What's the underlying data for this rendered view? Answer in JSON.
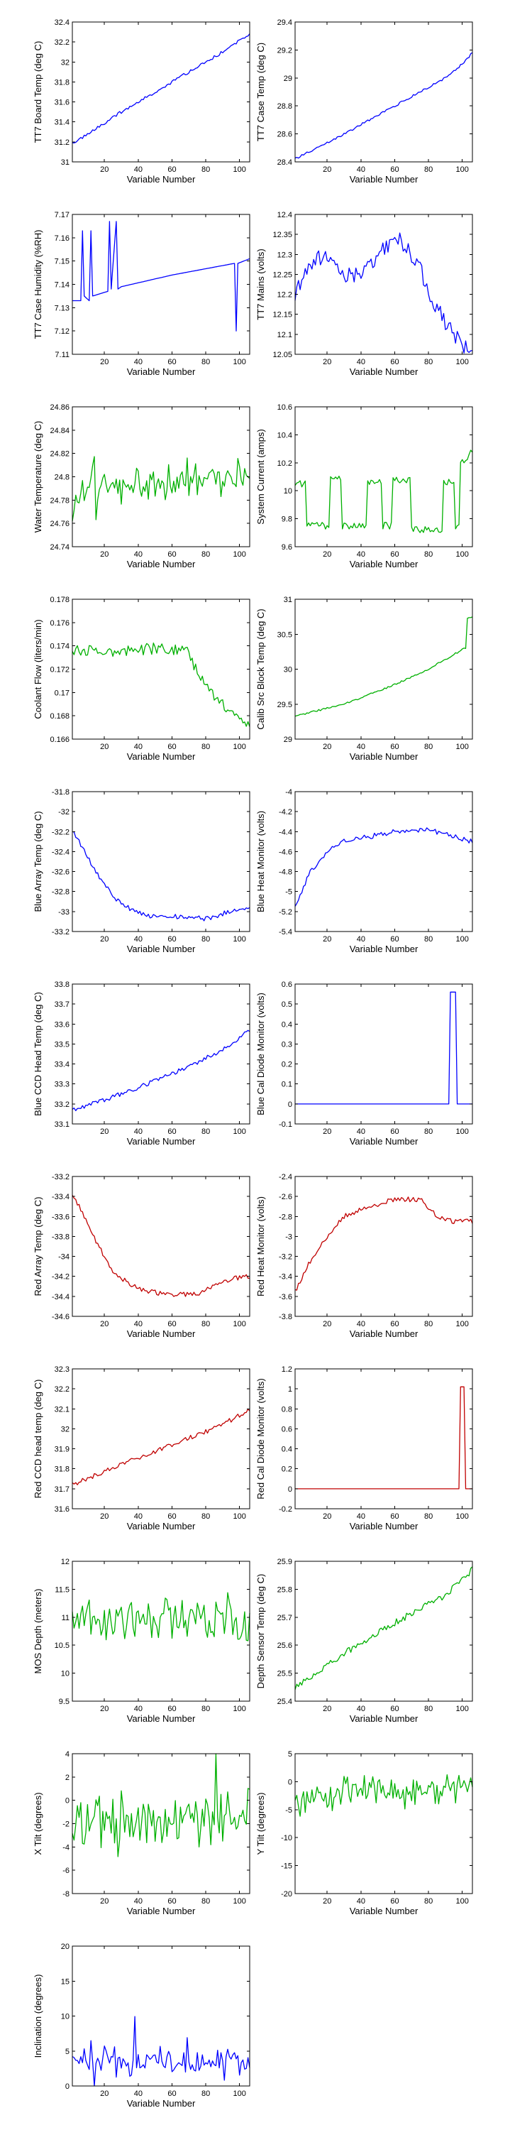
{
  "chart_data": [
    {
      "type": "line",
      "xlabel": "Variable Number",
      "ylabel": "TT7 Board Temp (deg C)",
      "xlim": [
        1,
        106
      ],
      "ylim": [
        31,
        32.4
      ],
      "xticks": [
        20,
        40,
        60,
        80,
        100
      ],
      "yticks": [
        "31",
        "31.2",
        "31.4",
        "31.6",
        "31.8",
        "32",
        "32.2",
        "32.4"
      ],
      "color": "#0000ff",
      "shape": "linear",
      "points": [
        [
          1,
          31.18
        ],
        [
          30,
          31.5
        ],
        [
          60,
          31.8
        ],
        [
          90,
          32.1
        ],
        [
          106,
          32.28
        ]
      ],
      "noise": 0.015
    },
    {
      "type": "line",
      "xlabel": "Variable Number",
      "ylabel": "TT7 Case Temp (deg C)",
      "xlim": [
        1,
        106
      ],
      "ylim": [
        28.4,
        29.4
      ],
      "xticks": [
        20,
        40,
        60,
        80,
        100
      ],
      "yticks": [
        "28.4",
        "28.6",
        "28.8",
        "29",
        "29.2",
        "29.4"
      ],
      "color": "#0000ff",
      "shape": "linear",
      "points": [
        [
          1,
          28.42
        ],
        [
          30,
          28.6
        ],
        [
          60,
          28.8
        ],
        [
          90,
          29.0
        ],
        [
          100,
          29.1
        ],
        [
          106,
          29.18
        ]
      ],
      "noise": 0.008
    },
    {
      "type": "line",
      "xlabel": "Variable Number",
      "ylabel": "TT7 Case Humidity (%RH)",
      "xlim": [
        1,
        106
      ],
      "ylim": [
        7.11,
        7.17
      ],
      "xticks": [
        20,
        40,
        60,
        80,
        100
      ],
      "yticks": [
        "7.11",
        "7.12",
        "7.13",
        "7.14",
        "7.15",
        "7.16",
        "7.17"
      ],
      "color": "#0000ff",
      "shape": "humidity",
      "points": [
        [
          1,
          7.133
        ],
        [
          6,
          7.133
        ],
        [
          7,
          7.163
        ],
        [
          8,
          7.135
        ],
        [
          11,
          7.133
        ],
        [
          12,
          7.163
        ],
        [
          13,
          7.135
        ],
        [
          22,
          7.137
        ],
        [
          23,
          7.167
        ],
        [
          24,
          7.138
        ],
        [
          27,
          7.167
        ],
        [
          28,
          7.138
        ],
        [
          30,
          7.139
        ],
        [
          60,
          7.144
        ],
        [
          97,
          7.149
        ],
        [
          98,
          7.12
        ],
        [
          99,
          7.149
        ],
        [
          106,
          7.151
        ]
      ],
      "noise": 0.0
    },
    {
      "type": "line",
      "xlabel": "Variable Number",
      "ylabel": "TT7 Mains (volts)",
      "xlim": [
        1,
        106
      ],
      "ylim": [
        12.05,
        12.4
      ],
      "xticks": [
        20,
        40,
        60,
        80,
        100
      ],
      "yticks": [
        "12.05",
        "12.1",
        "12.15",
        "12.2",
        "12.25",
        "12.3",
        "12.35",
        "12.4"
      ],
      "color": "#0000ff",
      "shape": "mains",
      "points": [
        [
          1,
          12.2
        ],
        [
          10,
          12.28
        ],
        [
          20,
          12.3
        ],
        [
          30,
          12.25
        ],
        [
          40,
          12.25
        ],
        [
          50,
          12.3
        ],
        [
          62,
          12.34
        ],
        [
          70,
          12.3
        ],
        [
          75,
          12.27
        ],
        [
          80,
          12.2
        ],
        [
          85,
          12.17
        ],
        [
          90,
          12.13
        ],
        [
          95,
          12.1
        ],
        [
          100,
          12.07
        ],
        [
          106,
          12.06
        ]
      ],
      "noise": 0.02
    },
    {
      "type": "line",
      "xlabel": "Variable Number",
      "ylabel": "Water Temperature (deg C)",
      "xlim": [
        1,
        106
      ],
      "ylim": [
        24.74,
        24.86
      ],
      "xticks": [
        20,
        40,
        60,
        80,
        100
      ],
      "yticks": [
        "24.74",
        "24.76",
        "24.78",
        "24.8",
        "24.82",
        "24.84",
        "24.86"
      ],
      "color": "#00b000",
      "shape": "noise",
      "points": [
        [
          1,
          24.77
        ],
        [
          10,
          24.79
        ],
        [
          50,
          24.795
        ],
        [
          106,
          24.8
        ]
      ],
      "noise": 0.013
    },
    {
      "type": "line",
      "xlabel": "Variable Number",
      "ylabel": "System Current (amps)",
      "xlim": [
        1,
        106
      ],
      "ylim": [
        9.6,
        10.6
      ],
      "xticks": [
        20,
        40,
        60,
        80,
        100
      ],
      "yticks": [
        "9.6",
        "9.8",
        "10",
        "10.2",
        "10.4",
        "10.6"
      ],
      "color": "#00b000",
      "shape": "current",
      "points": [
        [
          1,
          10.05
        ],
        [
          7,
          10.05
        ],
        [
          8,
          9.75
        ],
        [
          21,
          9.75
        ],
        [
          22,
          10.08
        ],
        [
          28,
          10.08
        ],
        [
          29,
          9.75
        ],
        [
          43,
          9.75
        ],
        [
          44,
          10.06
        ],
        [
          52,
          10.06
        ],
        [
          53,
          9.75
        ],
        [
          58,
          9.75
        ],
        [
          59,
          10.08
        ],
        [
          69,
          10.08
        ],
        [
          70,
          9.72
        ],
        [
          88,
          9.72
        ],
        [
          89,
          10.06
        ],
        [
          95,
          10.06
        ],
        [
          96,
          9.75
        ],
        [
          98,
          9.75
        ],
        [
          99,
          10.2
        ],
        [
          106,
          10.28
        ]
      ],
      "noise": 0.025
    },
    {
      "type": "line",
      "xlabel": "Variable Number",
      "ylabel": "Coolant Flow (liters/min)",
      "xlim": [
        1,
        106
      ],
      "ylim": [
        0.166,
        0.178
      ],
      "xticks": [
        20,
        40,
        60,
        80,
        100
      ],
      "yticks": [
        "0.166",
        "0.168",
        "0.17",
        "0.172",
        "0.174",
        "0.176",
        "0.178"
      ],
      "color": "#00b000",
      "shape": "piecewise",
      "points": [
        [
          1,
          0.1737
        ],
        [
          30,
          0.1735
        ],
        [
          50,
          0.1738
        ],
        [
          68,
          0.1737
        ],
        [
          75,
          0.1718
        ],
        [
          85,
          0.1695
        ],
        [
          95,
          0.1685
        ],
        [
          106,
          0.1672
        ]
      ],
      "noise": 0.0005
    },
    {
      "type": "line",
      "xlabel": "Variable Number",
      "ylabel": "Calib Src Block Temp (deg C)",
      "xlim": [
        1,
        106
      ],
      "ylim": [
        29,
        31
      ],
      "xticks": [
        20,
        40,
        60,
        80,
        100
      ],
      "yticks": [
        "29",
        "29.5",
        "30",
        "30.5",
        "31"
      ],
      "color": "#00b000",
      "shape": "piecewise",
      "points": [
        [
          1,
          29.33
        ],
        [
          30,
          29.5
        ],
        [
          60,
          29.78
        ],
        [
          80,
          30.0
        ],
        [
          100,
          30.28
        ],
        [
          102,
          30.3
        ],
        [
          103,
          30.72
        ],
        [
          106,
          30.75
        ]
      ],
      "noise": 0.012
    },
    {
      "type": "line",
      "xlabel": "Variable Number",
      "ylabel": "Blue Array Temp (deg C)",
      "xlim": [
        1,
        106
      ],
      "ylim": [
        -33.2,
        -31.8
      ],
      "xticks": [
        20,
        40,
        60,
        80,
        100
      ],
      "yticks": [
        "-33.2",
        "-33",
        "-32.8",
        "-32.6",
        "-32.4",
        "-32.2",
        "-32",
        "-31.8"
      ],
      "color": "#0000ff",
      "shape": "decay",
      "points": [
        [
          1,
          -32.2
        ],
        [
          5,
          -32.3
        ],
        [
          15,
          -32.6
        ],
        [
          25,
          -32.85
        ],
        [
          35,
          -32.97
        ],
        [
          45,
          -33.05
        ],
        [
          60,
          -33.05
        ],
        [
          80,
          -33.07
        ],
        [
          95,
          -33.0
        ],
        [
          106,
          -32.95
        ]
      ],
      "noise": 0.025
    },
    {
      "type": "line",
      "xlabel": "Variable Number",
      "ylabel": "Blue Heat Monitor (volts)",
      "xlim": [
        1,
        106
      ],
      "ylim": [
        -5.4,
        -4
      ],
      "xticks": [
        20,
        40,
        60,
        80,
        100
      ],
      "yticks": [
        "-5.4",
        "-5.2",
        "-5",
        "-4.8",
        "-4.6",
        "-4.4",
        "-4.2",
        "-4"
      ],
      "color": "#0000ff",
      "shape": "rise",
      "points": [
        [
          1,
          -5.15
        ],
        [
          10,
          -4.8
        ],
        [
          20,
          -4.6
        ],
        [
          30,
          -4.5
        ],
        [
          45,
          -4.45
        ],
        [
          60,
          -4.4
        ],
        [
          80,
          -4.38
        ],
        [
          95,
          -4.45
        ],
        [
          106,
          -4.5
        ]
      ],
      "noise": 0.025
    },
    {
      "type": "line",
      "xlabel": "Variable Number",
      "ylabel": "Blue CCD Head Temp (deg C)",
      "xlim": [
        1,
        106
      ],
      "ylim": [
        33.1,
        33.8
      ],
      "xticks": [
        20,
        40,
        60,
        80,
        100
      ],
      "yticks": [
        "33.1",
        "33.2",
        "33.3",
        "33.4",
        "33.5",
        "33.6",
        "33.7",
        "33.8"
      ],
      "color": "#0000ff",
      "shape": "linear",
      "points": [
        [
          1,
          33.17
        ],
        [
          30,
          33.25
        ],
        [
          60,
          33.35
        ],
        [
          90,
          33.47
        ],
        [
          106,
          33.57
        ]
      ],
      "noise": 0.012
    },
    {
      "type": "line",
      "xlabel": "Variable Number",
      "ylabel": "Blue Cal Diode Monitor (volts)",
      "xlim": [
        1,
        106
      ],
      "ylim": [
        -0.1,
        0.6
      ],
      "xticks": [
        20,
        40,
        60,
        80,
        100
      ],
      "yticks": [
        "-0.1",
        "0",
        "0.1",
        "0.2",
        "0.3",
        "0.4",
        "0.5",
        "0.6"
      ],
      "color": "#0000ff",
      "shape": "pulse",
      "points": [
        [
          1,
          0.0
        ],
        [
          92,
          0.0
        ],
        [
          93,
          0.56
        ],
        [
          96,
          0.56
        ],
        [
          97,
          0.0
        ],
        [
          106,
          0.0
        ]
      ],
      "noise": 0.0
    },
    {
      "type": "line",
      "xlabel": "Variable Number",
      "ylabel": "Red Array Temp (deg C)",
      "xlim": [
        1,
        106
      ],
      "ylim": [
        -34.6,
        -33.2
      ],
      "xticks": [
        20,
        40,
        60,
        80,
        100
      ],
      "yticks": [
        "-34.6",
        "-34.4",
        "-34.2",
        "-34",
        "-33.8",
        "-33.6",
        "-33.4",
        "-33.2"
      ],
      "color": "#c00000",
      "shape": "decay",
      "points": [
        [
          1,
          -33.4
        ],
        [
          5,
          -33.5
        ],
        [
          15,
          -33.85
        ],
        [
          25,
          -34.15
        ],
        [
          35,
          -34.28
        ],
        [
          45,
          -34.35
        ],
        [
          60,
          -34.38
        ],
        [
          75,
          -34.38
        ],
        [
          85,
          -34.3
        ],
        [
          95,
          -34.22
        ],
        [
          106,
          -34.2
        ]
      ],
      "noise": 0.025
    },
    {
      "type": "line",
      "xlabel": "Variable Number",
      "ylabel": "Red Heat Monitor (volts)",
      "xlim": [
        1,
        106
      ],
      "ylim": [
        -3.8,
        -2.4
      ],
      "xticks": [
        20,
        40,
        60,
        80,
        100
      ],
      "yticks": [
        "-3.8",
        "-3.6",
        "-3.4",
        "-3.2",
        "-3",
        "-2.8",
        "-2.6",
        "-2.4"
      ],
      "color": "#c00000",
      "shape": "rise",
      "points": [
        [
          1,
          -3.55
        ],
        [
          10,
          -3.25
        ],
        [
          20,
          -3.0
        ],
        [
          30,
          -2.8
        ],
        [
          45,
          -2.7
        ],
        [
          60,
          -2.63
        ],
        [
          75,
          -2.63
        ],
        [
          85,
          -2.8
        ],
        [
          95,
          -2.85
        ],
        [
          106,
          -2.85
        ]
      ],
      "noise": 0.025
    },
    {
      "type": "line",
      "xlabel": "Variable Number",
      "ylabel": "Red CCD head temp (deg C)",
      "xlim": [
        1,
        106
      ],
      "ylim": [
        31.6,
        32.3
      ],
      "xticks": [
        20,
        40,
        60,
        80,
        100
      ],
      "yticks": [
        "31.6",
        "31.7",
        "31.8",
        "31.9",
        "32",
        "32.1",
        "32.2",
        "32.3"
      ],
      "color": "#c00000",
      "shape": "linear",
      "points": [
        [
          1,
          31.72
        ],
        [
          30,
          31.82
        ],
        [
          60,
          31.92
        ],
        [
          90,
          32.02
        ],
        [
          106,
          32.1
        ]
      ],
      "noise": 0.012
    },
    {
      "type": "line",
      "xlabel": "Variable Number",
      "ylabel": "Red Cal Diode Monitor (volts)",
      "xlim": [
        1,
        106
      ],
      "ylim": [
        -0.2,
        1.2
      ],
      "xticks": [
        20,
        40,
        60,
        80,
        100
      ],
      "yticks": [
        "-0.2",
        "0",
        "0.2",
        "0.4",
        "0.6",
        "0.8",
        "1",
        "1.2"
      ],
      "color": "#c00000",
      "shape": "pulse",
      "points": [
        [
          1,
          0.0
        ],
        [
          98,
          0.0
        ],
        [
          99,
          1.02
        ],
        [
          101,
          1.02
        ],
        [
          102,
          0.0
        ],
        [
          106,
          0.0
        ]
      ],
      "noise": 0.0
    },
    {
      "type": "line",
      "xlabel": "Variable Number",
      "ylabel": "MOS Depth  (meters)",
      "xlim": [
        1,
        106
      ],
      "ylim": [
        9.5,
        12
      ],
      "xticks": [
        20,
        40,
        60,
        80,
        100
      ],
      "yticks": [
        "9.5",
        "10",
        "10.5",
        "11",
        "11.5",
        "12"
      ],
      "color": "#00b000",
      "shape": "noise",
      "points": [
        [
          1,
          10.9
        ],
        [
          50,
          10.95
        ],
        [
          106,
          11.0
        ]
      ],
      "noise": 0.3
    },
    {
      "type": "line",
      "xlabel": "Variable Number",
      "ylabel": "Depth Sensor Temp (deg C)",
      "xlim": [
        1,
        106
      ],
      "ylim": [
        25.4,
        25.9
      ],
      "xticks": [
        20,
        40,
        60,
        80,
        100
      ],
      "yticks": [
        "25.4",
        "25.5",
        "25.6",
        "25.7",
        "25.8",
        "25.9"
      ],
      "color": "#00b000",
      "shape": "linear",
      "points": [
        [
          1,
          25.45
        ],
        [
          10,
          25.48
        ],
        [
          30,
          25.57
        ],
        [
          60,
          25.68
        ],
        [
          90,
          25.78
        ],
        [
          106,
          25.87
        ]
      ],
      "noise": 0.012
    },
    {
      "type": "line",
      "xlabel": "Variable Number",
      "ylabel": "X Tilt  (degrees)",
      "xlim": [
        1,
        106
      ],
      "ylim": [
        -8,
        4
      ],
      "xticks": [
        20,
        40,
        60,
        80,
        100
      ],
      "yticks": [
        "-8",
        "-6",
        "-4",
        "-2",
        "0",
        "2",
        "4"
      ],
      "color": "#00b000",
      "shape": "noise",
      "points": [
        [
          1,
          -2.0
        ],
        [
          50,
          -1.5
        ],
        [
          106,
          -1.5
        ]
      ],
      "noise": 1.8
    },
    {
      "type": "line",
      "xlabel": "Variable Number",
      "ylabel": "Y Tilt  (degrees)",
      "xlim": [
        1,
        106
      ],
      "ylim": [
        -20,
        5
      ],
      "xticks": [
        20,
        40,
        60,
        80,
        100
      ],
      "yticks": [
        "-20",
        "-15",
        "-10",
        "-5",
        "0",
        "5"
      ],
      "color": "#00b000",
      "shape": "noise",
      "points": [
        [
          1,
          -3
        ],
        [
          50,
          -2
        ],
        [
          106,
          -1
        ]
      ],
      "noise": 2.0
    },
    {
      "type": "line",
      "xlabel": "Variable Number",
      "ylabel": "Inclination  (degrees)",
      "xlim": [
        1,
        106
      ],
      "ylim": [
        0,
        20
      ],
      "xticks": [
        20,
        40,
        60,
        80,
        100
      ],
      "yticks": [
        "0",
        "5",
        "10",
        "15",
        "20"
      ],
      "color": "#0000ff",
      "shape": "noise",
      "points": [
        [
          1,
          4
        ],
        [
          50,
          3.5
        ],
        [
          106,
          3.5
        ]
      ],
      "noise": 1.8
    }
  ]
}
